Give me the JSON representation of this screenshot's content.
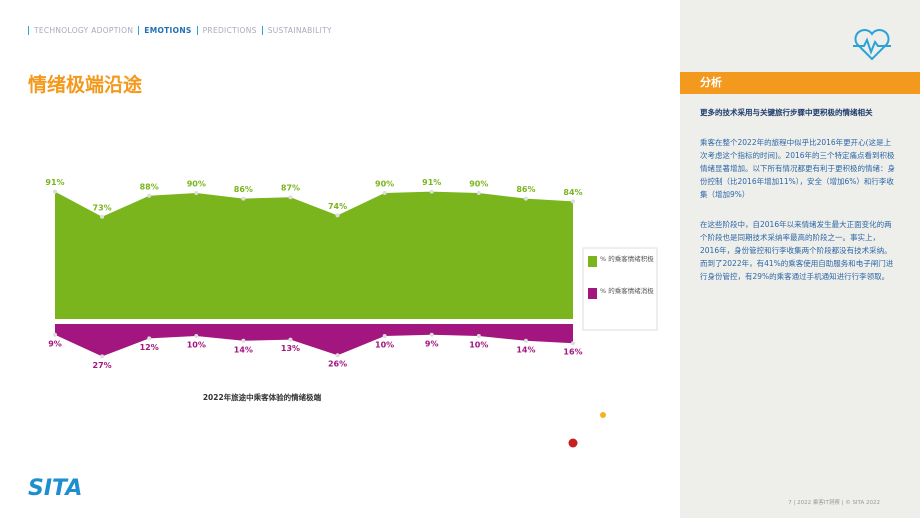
{
  "nav": [
    "TECHNOLOGY ADOPTION",
    "EMOTIONS",
    "PREDICTIONS",
    "SUSTAINABILITY"
  ],
  "page_title": "情绪极端沿途",
  "sidebar": {
    "tab": "分析",
    "heading": "更多的技术采用与关键旅行步骤中更积极的情绪相关",
    "paragraphs": [
      "乘客在整个2022年的旅程中似乎比2016年更开心(这是上次考虑这个指标的时间)。2016年的三个特定痛点看到积极情绪显著增加。以下所有情况都更有利于更积极的情绪：身份控制（比2016年增加11%），安全（增加6%）和行李收集（增加9%）",
      "在这些阶段中，自2016年以来情绪发生最大正面变化的两个阶段也是同期技术采纳率最高的阶段之一。事实上，2016年，身份管控和行李收集两个阶段都没有技术采纳。而到了2022年，有41%的乘客使用自助服务和电子闸门进行身份管控，有29%的乘客通过手机通知进行行李领取。"
    ]
  },
  "footer": "7 | 2022 乘客IT洞察 | © SITA 2022",
  "logo": "SITA",
  "chart_data": {
    "type": "area",
    "title": "2022年旅途中乘客体验的情绪极端",
    "series": [
      {
        "name": "% 的乘客情绪积极",
        "color": "#7ab51d",
        "values": [
          91,
          73,
          88,
          90,
          86,
          87,
          74,
          90,
          91,
          90,
          86,
          84
        ],
        "value_labels": [
          "91%",
          "73%",
          "88%",
          "90%",
          "86%",
          "87%",
          "74%",
          "90%",
          "91%",
          "90%",
          "86%",
          "84%"
        ]
      },
      {
        "name": "% 的乘客情绪消极",
        "color": "#a3157f",
        "values": [
          9,
          27,
          12,
          10,
          14,
          13,
          26,
          10,
          9,
          10,
          14,
          16
        ],
        "value_labels": [
          "9%",
          "27%",
          "12%",
          "10%",
          "14%",
          "13%",
          "26%",
          "10%",
          "9%",
          "10%",
          "14%",
          "16%"
        ]
      }
    ]
  }
}
